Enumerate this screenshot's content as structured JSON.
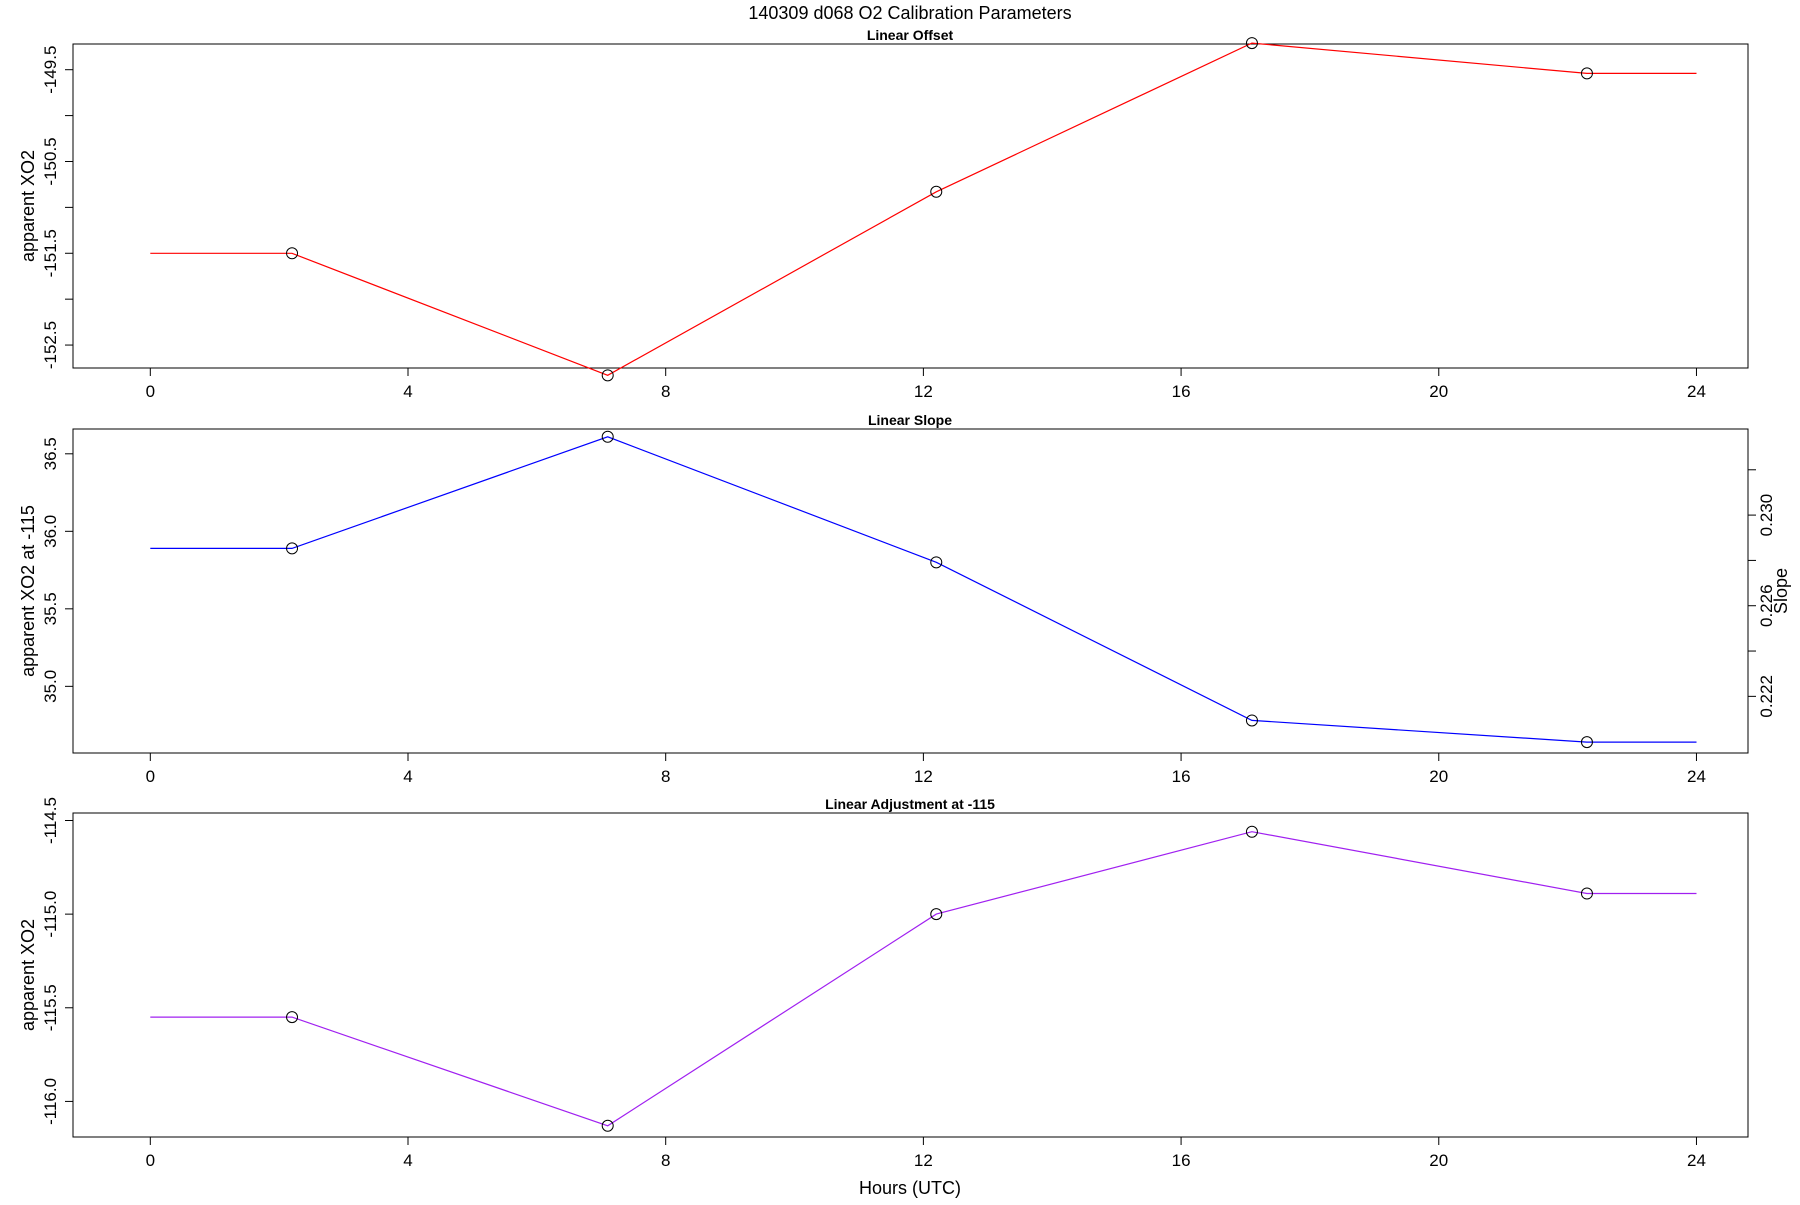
{
  "figure": {
    "title": "140309   d068   O2 Calibration Parameters",
    "xlabel": "Hours (UTC)"
  },
  "chart_data": [
    {
      "type": "line",
      "title": "Linear Offset",
      "xlabel": "",
      "ylabel": "apparent XO2",
      "xlim": [
        -1.2,
        24.8
      ],
      "ylim": [
        -152.75,
        -149.22
      ],
      "xticks": [
        0,
        4,
        8,
        12,
        16,
        20,
        24
      ],
      "yticks": [
        -149.5,
        -150.0,
        -150.5,
        -151.0,
        -151.5,
        -152.0,
        -152.5
      ],
      "ytick_labels": [
        "-149.5",
        "",
        "-150.5",
        "",
        "-151.5",
        "",
        "-152.5"
      ],
      "color": "#ff0000",
      "series": [
        {
          "x": [
            0,
            2.2,
            7.1,
            12.2,
            17.1,
            22.3,
            24
          ],
          "y": [
            -151.5,
            -151.5,
            -152.83,
            -150.83,
            -149.21,
            -149.54,
            -149.54
          ]
        }
      ],
      "markers_x": [
        2.2,
        7.1,
        12.2,
        17.1,
        22.3
      ],
      "markers_y": [
        -151.5,
        -152.83,
        -150.83,
        -149.21,
        -149.54
      ]
    },
    {
      "type": "line",
      "title": "Linear Slope",
      "xlabel": "",
      "ylabel": "apparent XO2 at -115",
      "ylabel_right": "Slope",
      "xlim": [
        -1.2,
        24.8
      ],
      "ylim": [
        34.57,
        36.66
      ],
      "xticks": [
        0,
        4,
        8,
        12,
        16,
        20,
        24
      ],
      "yticks": [
        35.0,
        35.5,
        36.0,
        36.5
      ],
      "ytick_labels": [
        "35.0",
        "35.5",
        "36.0",
        "36.5"
      ],
      "right_ylim": [
        0.2195,
        0.2338
      ],
      "right_yticks": [
        0.222,
        0.224,
        0.226,
        0.228,
        0.23,
        0.232
      ],
      "right_ytick_labels": [
        "0.222",
        "",
        "0.226",
        "",
        "0.230",
        ""
      ],
      "color": "#0000ff",
      "series": [
        {
          "x": [
            0,
            2.2,
            7.1,
            12.2,
            17.1,
            22.3,
            24
          ],
          "y": [
            35.89,
            35.89,
            36.61,
            35.8,
            34.78,
            34.64,
            34.64
          ]
        }
      ],
      "markers_x": [
        2.2,
        7.1,
        12.2,
        17.1,
        22.3
      ],
      "markers_y": [
        35.89,
        36.61,
        35.8,
        34.78,
        34.64
      ]
    },
    {
      "type": "line",
      "title": "Linear Adjustment at -115",
      "xlabel": "Hours (UTC)",
      "ylabel": "apparent XO2",
      "xlim": [
        -1.2,
        24.8
      ],
      "ylim": [
        -116.19,
        -114.46
      ],
      "xticks": [
        0,
        4,
        8,
        12,
        16,
        20,
        24
      ],
      "yticks": [
        -114.5,
        -115.0,
        -115.5,
        -116.0
      ],
      "ytick_labels": [
        "-114.5",
        "-115.0",
        "-115.5",
        "-116.0"
      ],
      "color": "#a020f0",
      "series": [
        {
          "x": [
            0,
            2.2,
            7.1,
            12.2,
            17.1,
            22.3,
            24
          ],
          "y": [
            -115.55,
            -115.55,
            -116.13,
            -115.0,
            -114.56,
            -114.89,
            -114.89
          ]
        }
      ],
      "markers_x": [
        2.2,
        7.1,
        12.2,
        17.1,
        22.3
      ],
      "markers_y": [
        -115.55,
        -116.13,
        -115.0,
        -114.56,
        -114.89
      ]
    }
  ]
}
